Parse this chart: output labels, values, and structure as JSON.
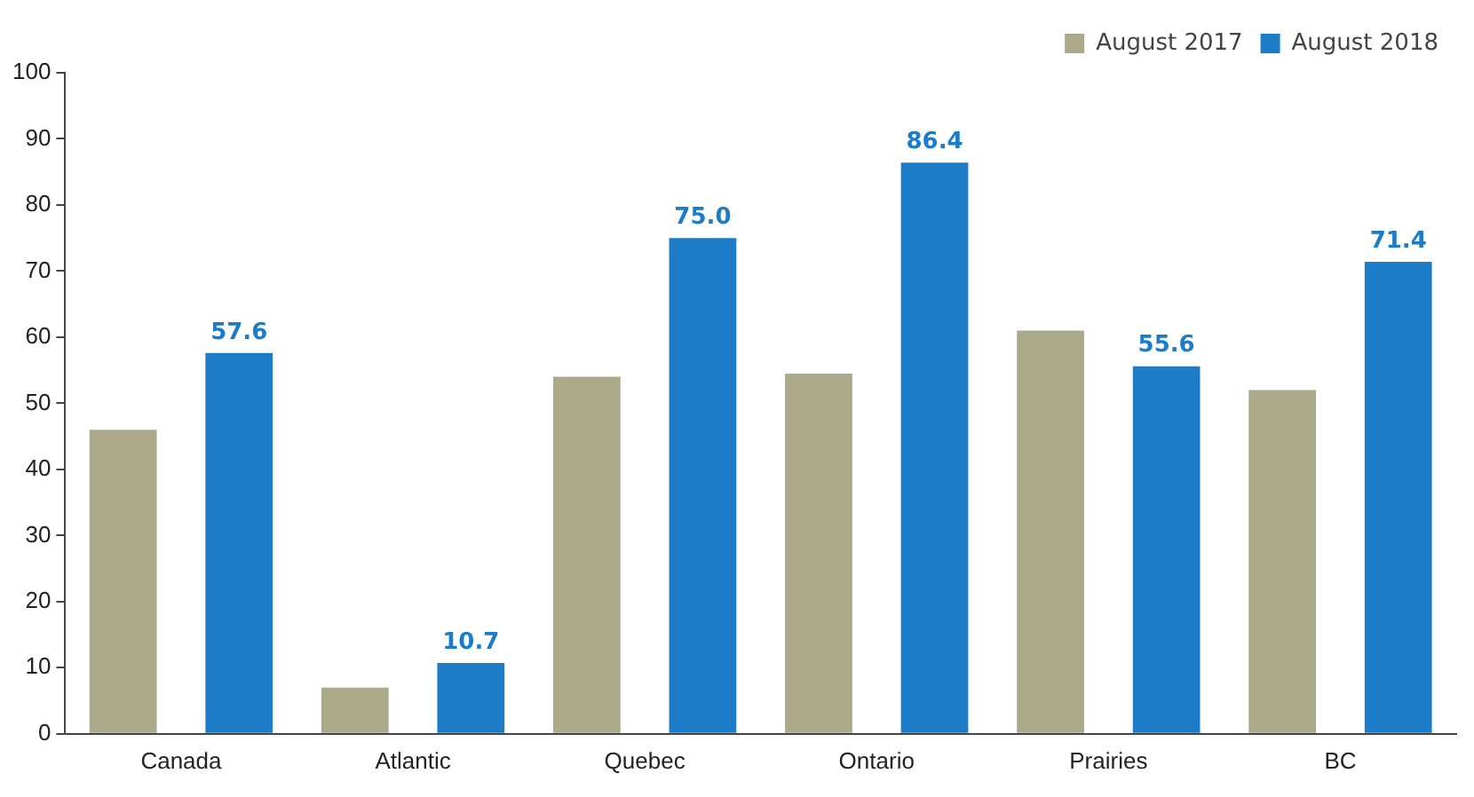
{
  "chart_data": {
    "type": "bar",
    "categories": [
      "Canada",
      "Atlantic",
      "Quebec",
      "Ontario",
      "Prairies",
      "BC"
    ],
    "series": [
      {
        "name": "August 2017",
        "color": "#aba98a",
        "values": [
          46,
          7,
          54,
          54.5,
          61,
          52
        ]
      },
      {
        "name": "August 2018",
        "color": "#1c7cc8",
        "values": [
          57.6,
          10.7,
          75.0,
          86.4,
          55.6,
          71.4
        ],
        "value_labels": [
          "57.6",
          "10.7",
          "75.0",
          "86.4",
          "55.6",
          "71.4"
        ]
      }
    ],
    "ylim": [
      0,
      100
    ],
    "yticks": [
      0,
      10,
      20,
      30,
      40,
      50,
      60,
      70,
      80,
      90,
      100
    ],
    "grid": false,
    "legend": "top right"
  }
}
